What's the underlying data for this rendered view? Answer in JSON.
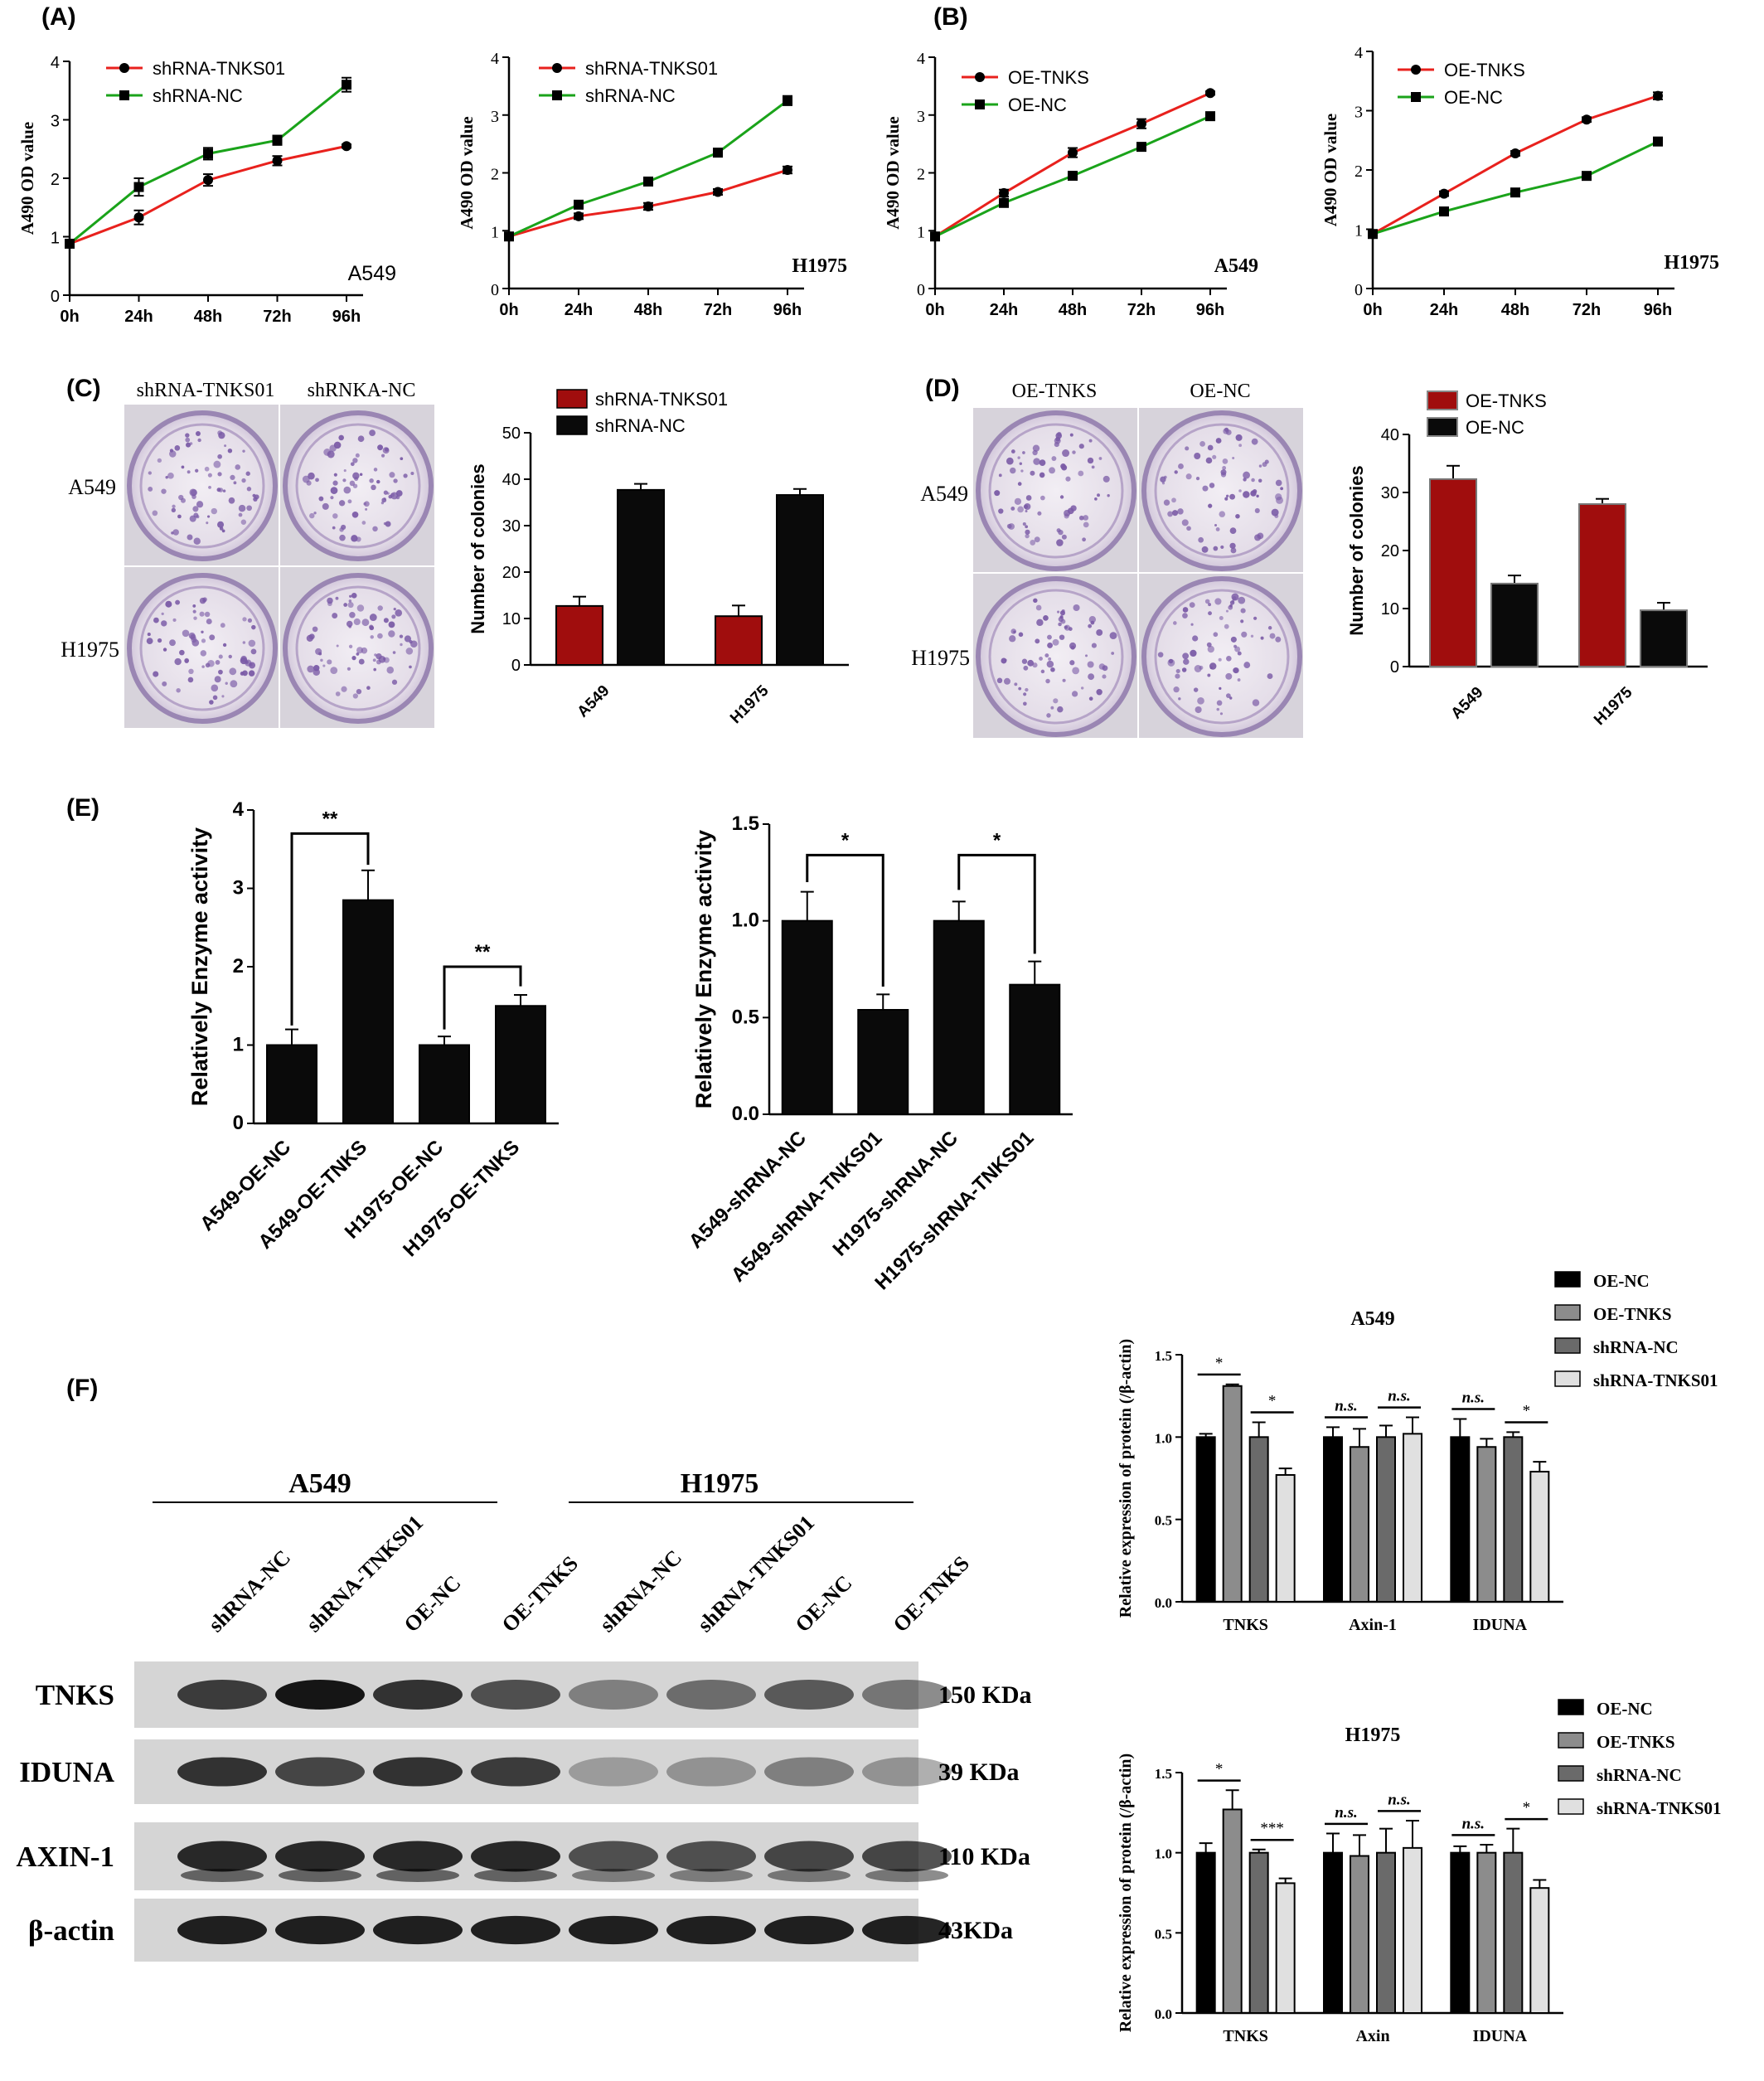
{
  "panel_labels": [
    "(A)",
    "(B)",
    "(C)",
    "(D)",
    "(E)",
    "(F)"
  ],
  "colors": {
    "red": "#e8211d",
    "green": "#1aa31a",
    "darkred": "#a00d0d",
    "bar_black": "#0a0a0a",
    "plate_purple": "#7a5aa6"
  },
  "panelA_left": {
    "cell": "A549",
    "ylabel": "A490 OD value",
    "x_ticks": [
      "0h",
      "24h",
      "48h",
      "72h",
      "96h"
    ],
    "y_ticks": [
      "0",
      "1",
      "2",
      "3",
      "4"
    ],
    "legend": [
      "shRNA-TNKS01",
      "shRNA-NC"
    ]
  },
  "panelA_right": {
    "cell": "H1975",
    "ylabel": "A490 OD value",
    "x_ticks": [
      "0h",
      "24h",
      "48h",
      "72h",
      "96h"
    ],
    "y_ticks": [
      "0",
      "1",
      "2",
      "3",
      "4"
    ],
    "legend": [
      "shRNA-TNKS01",
      "shRNA-NC"
    ]
  },
  "panelB_left": {
    "cell": "A549",
    "ylabel": "A490 OD value",
    "x_ticks": [
      "0h",
      "24h",
      "48h",
      "72h",
      "96h"
    ],
    "y_ticks": [
      "0",
      "1",
      "2",
      "3",
      "4"
    ],
    "legend": [
      "OE-TNKS",
      "OE-NC"
    ]
  },
  "panelB_right": {
    "cell": "H1975",
    "ylabel": "A490 OD value",
    "x_ticks": [
      "0h",
      "24h",
      "48h",
      "72h",
      "96h"
    ],
    "y_ticks": [
      "0",
      "1",
      "2",
      "3",
      "4"
    ],
    "legend": [
      "OE-TNKS",
      "OE-NC"
    ]
  },
  "panelC": {
    "plate_col_labels": [
      "shRNA-TNKS01",
      "shRNKA-NC"
    ],
    "plate_row_labels": [
      "A549",
      "H1975"
    ],
    "legend": [
      "shRNA-TNKS01",
      "shRNA-NC"
    ],
    "ylabel": "Number of colonies",
    "y_ticks": [
      "0",
      "10",
      "20",
      "30",
      "40",
      "50"
    ],
    "categories": [
      "A549",
      "H1975"
    ]
  },
  "panelD": {
    "plate_col_labels": [
      "OE-TNKS",
      "OE-NC"
    ],
    "plate_row_labels": [
      "A549",
      "H1975"
    ],
    "legend": [
      "OE-TNKS",
      "OE-NC"
    ],
    "ylabel": "Number of colonies",
    "y_ticks": [
      "0",
      "10",
      "20",
      "30",
      "40"
    ],
    "categories": [
      "A549",
      "H1975"
    ]
  },
  "panelE_left": {
    "ylabel": "Relatively Enzyme activity",
    "y_ticks": [
      "0",
      "1",
      "2",
      "3",
      "4"
    ],
    "categories": [
      "A549-OE-NC",
      "A549-OE-TNKS",
      "H1975-OE-NC",
      "H1975-OE-TNKS"
    ],
    "sig": [
      "**",
      "**"
    ]
  },
  "panelE_right": {
    "ylabel": "Relatively Enzyme activity",
    "y_ticks": [
      "0.0",
      "0.5",
      "1.0",
      "1.5"
    ],
    "categories": [
      "A549-shRNA-NC",
      "A549-shRNA-TNKS01",
      "H1975-shRNA-NC",
      "H1975-shRNA-TNKS01"
    ],
    "sig": [
      "*",
      "*"
    ]
  },
  "panelF_blot": {
    "group_labels": [
      "A549",
      "H1975"
    ],
    "lane_labels": [
      "shRNA-NC",
      "shRNA-TNKS01",
      "OE-NC",
      "OE-TNKS",
      "shRNA-NC",
      "shRNA-TNKS01",
      "OE-NC",
      "OE-TNKS"
    ],
    "proteins": [
      "TNKS",
      "IDUNA",
      "AXIN-1",
      "β-actin"
    ],
    "sizes": [
      "150 KDa",
      "39 KDa",
      "110 KDa",
      "43KDa"
    ]
  },
  "panelF_top": {
    "title": "A549",
    "ylabel": "Relative expression of protein (/β-actin)",
    "y_ticks": [
      "0.0",
      "0.5",
      "1.0",
      "1.5"
    ],
    "groups": [
      "TNKS",
      "Axin-1",
      "IDUNA"
    ],
    "legend": [
      "OE-NC",
      "OE-TNKS",
      "shRNA-NC",
      "shRNA-TNKS01"
    ],
    "sig": [
      "*",
      "*",
      "n.s.",
      "n.s.",
      "n.s.",
      "*"
    ]
  },
  "panelF_bottom": {
    "title": "H1975",
    "ylabel": "Relative expression of protein (/β-actin)",
    "y_ticks": [
      "0.0",
      "0.5",
      "1.0",
      "1.5"
    ],
    "groups": [
      "TNKS",
      "Axin",
      "IDUNA"
    ],
    "legend": [
      "OE-NC",
      "OE-TNKS",
      "shRNA-NC",
      "shRNA-TNKS01"
    ],
    "sig": [
      "*",
      "***",
      "n.s.",
      "n.s.",
      "n.s.",
      "*"
    ]
  },
  "chart_data": [
    {
      "type": "line",
      "x": [
        "0h",
        "24h",
        "48h",
        "72h",
        "96h"
      ],
      "ylabel": "A490 OD value",
      "ylim": [
        0,
        4
      ],
      "series": [
        {
          "name": "shRNA-TNKS01",
          "values": [
            0.88,
            1.33,
            1.97,
            2.3,
            2.55
          ],
          "err": [
            0.03,
            0.12,
            0.1,
            0.08,
            0.03
          ]
        },
        {
          "name": "shRNA-NC",
          "values": [
            0.88,
            1.85,
            2.42,
            2.65,
            3.6
          ],
          "err": [
            0.03,
            0.15,
            0.1,
            0.08,
            0.12
          ]
        }
      ]
    },
    {
      "type": "line",
      "x": [
        "0h",
        "24h",
        "48h",
        "72h",
        "96h"
      ],
      "ylabel": "A490 OD value",
      "ylim": [
        0,
        4
      ],
      "series": [
        {
          "name": "shRNA-TNKS01",
          "values": [
            0.9,
            1.25,
            1.42,
            1.67,
            2.05
          ],
          "err": [
            0.03,
            0.05,
            0.06,
            0.05,
            0.06
          ]
        },
        {
          "name": "shRNA-NC",
          "values": [
            0.9,
            1.45,
            1.85,
            2.35,
            3.25
          ],
          "err": [
            0.03,
            0.06,
            0.06,
            0.06,
            0.08
          ]
        }
      ]
    },
    {
      "type": "line",
      "x": [
        "0h",
        "24h",
        "48h",
        "72h",
        "96h"
      ],
      "ylabel": "A490 OD value",
      "ylim": [
        0,
        4
      ],
      "series": [
        {
          "name": "OE-TNKS",
          "values": [
            0.9,
            1.65,
            2.35,
            2.85,
            3.38
          ],
          "err": [
            0.03,
            0.06,
            0.08,
            0.08,
            0.03
          ]
        },
        {
          "name": "OE-NC",
          "values": [
            0.9,
            1.48,
            1.95,
            2.45,
            2.98
          ],
          "err": [
            0.03,
            0.05,
            0.05,
            0.06,
            0.06
          ]
        }
      ]
    },
    {
      "type": "line",
      "x": [
        "0h",
        "24h",
        "48h",
        "72h",
        "96h"
      ],
      "ylabel": "A490 OD value",
      "ylim": [
        0,
        4
      ],
      "series": [
        {
          "name": "OE-TNKS",
          "values": [
            0.92,
            1.6,
            2.28,
            2.85,
            3.25
          ],
          "err": [
            0.03,
            0.04,
            0.04,
            0.04,
            0.06
          ]
        },
        {
          "name": "OE-NC",
          "values": [
            0.92,
            1.3,
            1.62,
            1.9,
            2.48
          ],
          "err": [
            0.03,
            0.04,
            0.04,
            0.04,
            0.05
          ]
        }
      ]
    },
    {
      "type": "bar",
      "categories": [
        "A549",
        "H1975"
      ],
      "ylabel": "Number of colonies",
      "ylim": [
        0,
        50
      ],
      "series": [
        {
          "name": "shRNA-TNKS01",
          "values": [
            12.7,
            10.5
          ],
          "err": [
            2.0,
            2.3
          ]
        },
        {
          "name": "shRNA-NC",
          "values": [
            37.7,
            36.6
          ],
          "err": [
            1.3,
            1.3
          ]
        }
      ]
    },
    {
      "type": "bar",
      "categories": [
        "A549",
        "H1975"
      ],
      "ylabel": "Number of colonies",
      "ylim": [
        0,
        40
      ],
      "series": [
        {
          "name": "OE-TNKS",
          "values": [
            32.3,
            28.0
          ],
          "err": [
            2.3,
            0.9
          ]
        },
        {
          "name": "OE-NC",
          "values": [
            14.3,
            9.7
          ],
          "err": [
            1.4,
            1.3
          ]
        }
      ]
    },
    {
      "type": "bar",
      "categories": [
        "A549-OE-NC",
        "A549-OE-TNKS",
        "H1975-OE-NC",
        "H1975-OE-TNKS"
      ],
      "ylabel": "Relatively Enzyme activity",
      "ylim": [
        0,
        4
      ],
      "series": [
        {
          "name": "",
          "values": [
            1.0,
            2.85,
            1.0,
            1.5
          ],
          "err": [
            0.2,
            0.38,
            0.11,
            0.14
          ]
        }
      ]
    },
    {
      "type": "bar",
      "categories": [
        "A549-shRNA-NC",
        "A549-shRNA-TNKS01",
        "H1975-shRNA-NC",
        "H1975-shRNA-TNKS01"
      ],
      "ylabel": "Relatively Enzyme activity",
      "ylim": [
        0,
        1.5
      ],
      "series": [
        {
          "name": "",
          "values": [
            1.0,
            0.54,
            1.0,
            0.67
          ],
          "err": [
            0.15,
            0.08,
            0.1,
            0.12
          ]
        }
      ]
    },
    {
      "type": "bar",
      "title": "A549",
      "categories": [
        "TNKS",
        "Axin-1",
        "IDUNA"
      ],
      "ylabel": "Relative expression of protein (/β-actin)",
      "ylim": [
        0,
        1.5
      ],
      "series": [
        {
          "name": "OE-NC",
          "values": [
            1.0,
            1.0,
            1.0
          ],
          "err": [
            0.02,
            0.06,
            0.11
          ]
        },
        {
          "name": "OE-TNKS",
          "values": [
            1.31,
            0.94,
            0.94
          ],
          "err": [
            0.01,
            0.11,
            0.05
          ]
        },
        {
          "name": "shRNA-NC",
          "values": [
            1.0,
            1.0,
            1.0
          ],
          "err": [
            0.09,
            0.07,
            0.03
          ]
        },
        {
          "name": "shRNA-TNKS01",
          "values": [
            0.77,
            1.02,
            0.79
          ],
          "err": [
            0.04,
            0.1,
            0.06
          ]
        }
      ]
    },
    {
      "type": "bar",
      "title": "H1975",
      "categories": [
        "TNKS",
        "Axin",
        "IDUNA"
      ],
      "ylabel": "Relative expression of protein (/β-actin)",
      "ylim": [
        0,
        1.5
      ],
      "series": [
        {
          "name": "OE-NC",
          "values": [
            1.0,
            1.0,
            1.0
          ],
          "err": [
            0.06,
            0.12,
            0.04
          ]
        },
        {
          "name": "OE-TNKS",
          "values": [
            1.27,
            0.98,
            1.0
          ],
          "err": [
            0.12,
            0.13,
            0.05
          ]
        },
        {
          "name": "shRNA-NC",
          "values": [
            1.0,
            1.0,
            1.0
          ],
          "err": [
            0.02,
            0.15,
            0.15
          ]
        },
        {
          "name": "shRNA-TNKS01",
          "values": [
            0.81,
            1.03,
            0.78
          ],
          "err": [
            0.03,
            0.17,
            0.05
          ]
        }
      ]
    }
  ]
}
